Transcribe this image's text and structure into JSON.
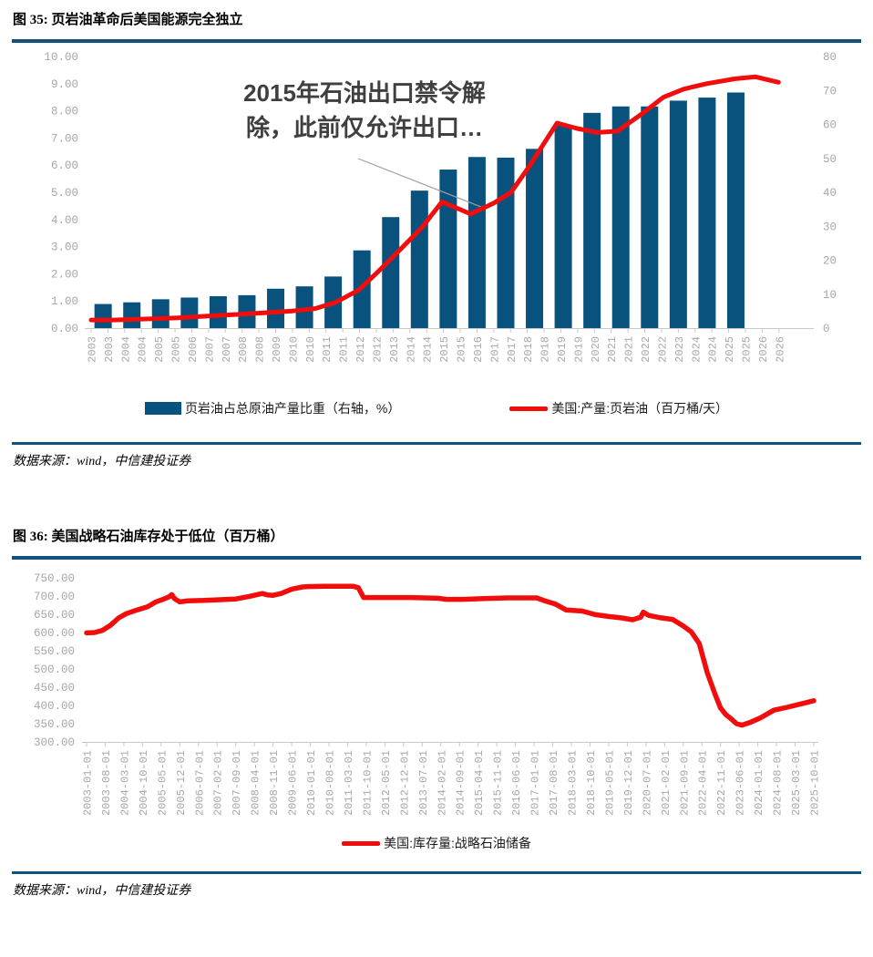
{
  "colors": {
    "bar": "#09527E",
    "line": "#F20D0D",
    "rule": "#14507D",
    "axis_text": "#A7A7A7",
    "axis_line": "#C9C9C9",
    "annotation_text": "#3F3F3F",
    "leader_line": "#A0A0A0",
    "legend_text": "#1A1A1A"
  },
  "figures": [
    {
      "source": "数据来源：wind，中信建投证券"
    },
    {
      "source": "数据来源：wind，中信建投证券"
    }
  ],
  "chart_data": [
    {
      "type": "bar+line",
      "title": "图 35: 页岩油革命后美国能源完全独立",
      "annotation_lines": [
        "2015年石油出口禁令解",
        "除，此前仅允许出口…"
      ],
      "left_axis": {
        "range": [
          0,
          10
        ],
        "tick_step": 1,
        "tick_format": "0.00"
      },
      "right_axis": {
        "range": [
          0,
          80
        ],
        "tick_step": 10
      },
      "x_axis": {
        "tick_labels": [
          "2003",
          "2003",
          "2004",
          "2004",
          "2005",
          "2005",
          "2006",
          "2007",
          "2007",
          "2008",
          "2008",
          "2009",
          "2010",
          "2010",
          "2011",
          "2011",
          "2012",
          "2012",
          "2013",
          "2014",
          "2014",
          "2015",
          "2015",
          "2016",
          "2017",
          "2017",
          "2018",
          "2018",
          "2019",
          "2019",
          "2020",
          "2021",
          "2021",
          "2022",
          "2022",
          "2023",
          "2024",
          "2024",
          "2025",
          "2025",
          "2026",
          "2026"
        ]
      },
      "bars": {
        "name": "页岩油占总原油产量比重（右轴，%）",
        "axis": "right",
        "years": [
          2003,
          2004,
          2005,
          2006,
          2007,
          2008,
          2009,
          2010,
          2011,
          2012,
          2013,
          2014,
          2015,
          2016,
          2017,
          2018,
          2019,
          2020,
          2021,
          2022,
          2023,
          2024,
          2025
        ],
        "values_pct": [
          7.1,
          7.6,
          8.5,
          9.0,
          9.4,
          9.7,
          11.6,
          12.3,
          15.2,
          22.9,
          32.7,
          40.5,
          46.7,
          50.4,
          50.2,
          52.8,
          59.6,
          63.4,
          65.3,
          65.3,
          67.0,
          67.9,
          69.4
        ]
      },
      "line": {
        "name": "美国:产量:页岩油（百万桶/天）",
        "axis": "left",
        "unit": "百万桶/天",
        "points": [
          [
            2003.0,
            0.3
          ],
          [
            2003.8,
            0.3
          ],
          [
            2005.0,
            0.34
          ],
          [
            2006.0,
            0.38
          ],
          [
            2007.0,
            0.44
          ],
          [
            2008.0,
            0.5
          ],
          [
            2009.0,
            0.56
          ],
          [
            2010.0,
            0.63
          ],
          [
            2010.8,
            0.72
          ],
          [
            2011.5,
            0.95
          ],
          [
            2012.3,
            1.4
          ],
          [
            2013.0,
            2.1
          ],
          [
            2013.8,
            2.95
          ],
          [
            2014.5,
            3.7
          ],
          [
            2015.2,
            4.65
          ],
          [
            2016.2,
            4.2
          ],
          [
            2017.0,
            4.6
          ],
          [
            2017.6,
            5.0
          ],
          [
            2018.2,
            5.9
          ],
          [
            2019.2,
            7.55
          ],
          [
            2019.9,
            7.35
          ],
          [
            2020.6,
            7.2
          ],
          [
            2021.3,
            7.25
          ],
          [
            2022.1,
            7.85
          ],
          [
            2022.9,
            8.5
          ],
          [
            2023.6,
            8.8
          ],
          [
            2024.4,
            9.0
          ],
          [
            2025.4,
            9.18
          ],
          [
            2026.1,
            9.25
          ],
          [
            2026.9,
            9.05
          ]
        ]
      },
      "legend_position": "bottom"
    },
    {
      "type": "line",
      "title": "图 36: 美国战略石油库存处于低位（百万桶）",
      "y_axis": {
        "range": [
          300,
          750
        ],
        "tick_step": 50,
        "tick_format": "0.00"
      },
      "x_axis": {
        "tick_labels": [
          "2003-01-01",
          "2003-08-01",
          "2004-03-01",
          "2004-10-01",
          "2005-05-01",
          "2005-12-01",
          "2006-07-01",
          "2007-02-01",
          "2007-09-01",
          "2008-04-01",
          "2008-11-01",
          "2009-06-01",
          "2010-01-01",
          "2010-08-01",
          "2011-03-01",
          "2011-10-01",
          "2012-05-01",
          "2012-12-01",
          "2013-07-01",
          "2014-02-01",
          "2014-09-01",
          "2015-04-01",
          "2015-11-01",
          "2016-06-01",
          "2017-01-01",
          "2017-08-01",
          "2018-03-01",
          "2018-10-01",
          "2019-05-01",
          "2019-12-01",
          "2020-07-01",
          "2021-02-01",
          "2021-09-01",
          "2022-04-01",
          "2022-11-01",
          "2023-06-01",
          "2024-01-01",
          "2024-08-01",
          "2025-03-01",
          "2025-10-01"
        ]
      },
      "series": [
        {
          "name": "美国:库存量:战略石油储备",
          "unit": "百万桶",
          "points": [
            [
              "2003-01",
              599
            ],
            [
              "2003-04",
              600
            ],
            [
              "2003-07",
              606
            ],
            [
              "2003-10",
              620
            ],
            [
              "2004-01",
              640
            ],
            [
              "2004-04",
              652
            ],
            [
              "2004-08",
              662
            ],
            [
              "2004-12",
              671
            ],
            [
              "2005-03",
              684
            ],
            [
              "2005-06",
              692
            ],
            [
              "2005-08",
              698
            ],
            [
              "2005-09",
              704
            ],
            [
              "2005-10",
              693
            ],
            [
              "2005-12",
              684
            ],
            [
              "2006-03",
              687
            ],
            [
              "2006-09",
              688
            ],
            [
              "2007-03",
              690
            ],
            [
              "2007-09",
              692
            ],
            [
              "2008-02",
              699
            ],
            [
              "2008-05",
              704
            ],
            [
              "2008-07",
              707
            ],
            [
              "2008-09",
              703
            ],
            [
              "2008-11",
              702
            ],
            [
              "2009-02",
              707
            ],
            [
              "2009-06",
              719
            ],
            [
              "2009-10",
              725
            ],
            [
              "2009-12",
              726
            ],
            [
              "2010-06",
              727
            ],
            [
              "2011-05",
              727
            ],
            [
              "2011-07",
              723
            ],
            [
              "2011-09",
              696
            ],
            [
              "2012-03",
              696
            ],
            [
              "2013-03",
              696
            ],
            [
              "2014-01",
              694
            ],
            [
              "2014-04",
              691
            ],
            [
              "2014-10",
              691
            ],
            [
              "2015-06",
              693
            ],
            [
              "2016-03",
              695
            ],
            [
              "2017-02",
              695
            ],
            [
              "2017-05",
              687
            ],
            [
              "2017-09",
              678
            ],
            [
              "2018-01",
              662
            ],
            [
              "2018-07",
              659
            ],
            [
              "2018-12",
              649
            ],
            [
              "2019-05",
              644
            ],
            [
              "2019-10",
              640
            ],
            [
              "2020-02",
              635
            ],
            [
              "2020-05",
              642
            ],
            [
              "2020-06",
              656
            ],
            [
              "2020-08",
              647
            ],
            [
              "2020-12",
              641
            ],
            [
              "2021-05",
              636
            ],
            [
              "2021-09",
              618
            ],
            [
              "2021-12",
              602
            ],
            [
              "2022-03",
              570
            ],
            [
              "2022-06",
              490
            ],
            [
              "2022-09",
              430
            ],
            [
              "2022-11",
              393
            ],
            [
              "2023-01",
              375
            ],
            [
              "2023-03",
              363
            ],
            [
              "2023-05",
              350
            ],
            [
              "2023-07",
              346
            ],
            [
              "2023-10",
              353
            ],
            [
              "2024-02",
              366
            ],
            [
              "2024-07",
              387
            ],
            [
              "2024-12",
              395
            ],
            [
              "2025-05",
              404
            ],
            [
              "2025-10",
              413
            ]
          ]
        }
      ],
      "legend_position": "bottom"
    }
  ]
}
